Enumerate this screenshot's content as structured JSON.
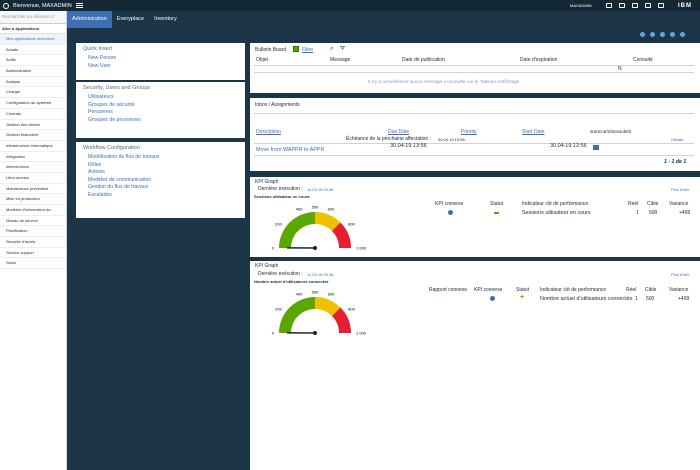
{
  "topbar": {
    "welcome": "Bienvenue, MAXADMIN",
    "user": "MAXADMIN",
    "brand": "IBM"
  },
  "nav": {
    "search_placeholder": "Rechercher un élément d",
    "section": "Aller à Applications",
    "items": [
      "Mes applications réservées",
      "Achats",
      "Actifs",
      "Administration",
      "Analyse",
      "Charger",
      "Configuration du système",
      "Contrats",
      "Gestion des tâches",
      "Gestion financière",
      "Infrastructure informatique",
      "Intégration",
      "Interventions",
      "Libre-service",
      "Maintenance préventive",
      "Mise en production",
      "Modèles d'information de...",
      "Niveau de service",
      "Planification",
      "Sécurité d'accès",
      "Service support",
      "Stock"
    ]
  },
  "tabs": [
    "Administration",
    "Everyplace",
    "Inventory"
  ],
  "quick_insert": {
    "title": "Quick Insert",
    "links": [
      "New Person",
      "New User"
    ]
  },
  "security": {
    "title": "Security, Users and Groups",
    "links": [
      "Utilisateurs",
      "Groupes de sécurité",
      "Personnes",
      "Groupes de personnes"
    ]
  },
  "workflow": {
    "title": "Workflow Configuration",
    "links": [
      "Modélisation du flux de travaux",
      "Rôles",
      "Actions",
      "Modèles de communication",
      "Gestion du flux de travaux",
      "Escalades"
    ]
  },
  "bulletin": {
    "title": "Bulletin Board",
    "filter": "Filtre",
    "cols": [
      "Objet",
      "Message",
      "Date de publication",
      "Date d'expiration",
      "Consulté"
    ],
    "consulte": "N",
    "empty": "Il n'y a actuellement aucun message à consulter sur le Tableau d'affichage"
  },
  "inbox": {
    "title": "Inbox / Assignments",
    "cols": [
      "Description",
      "Due Date",
      "Priority",
      "Start Date",
      "startcntr/inboxsubtitl"
    ],
    "subhead": "Échéance de la prochaine affectation :",
    "subdate": "30.04.19 13:56",
    "row_desc": "Move from WAPPR to APPR",
    "row_due": "30.04.19 13:56",
    "row_start": "30.04.19 12:56",
    "count": "1 - 1 de 1",
    "more": "Détails"
  },
  "kpi1": {
    "title": "KPI Graph",
    "last": "Dernière exécution :",
    "date": "11.03.15 09:36",
    "name": "Sessions utilisateur en cours",
    "cols": [
      "KPI connexe",
      "Statut",
      "Indicateur clé de performance",
      "Réel",
      "Cible",
      "Variance"
    ],
    "indicator": "Sessions utilisateur en cours",
    "actual": "1",
    "target": "500",
    "variance": "+499",
    "more": "Plus d'info",
    "ticks": [
      "0",
      "200",
      "400",
      "500",
      "600",
      "800",
      "1 000"
    ]
  },
  "kpi2": {
    "title": "KPI Graph",
    "last": "Dernière exécution :",
    "date": "11.03.15 09:36",
    "name": "Nombre actuel d'utilisateurs connectés",
    "cols": [
      "Rapport connexe",
      "KPI connexe",
      "Statut",
      "Indicateur clé de performance",
      "Réel",
      "Cible",
      "Variance"
    ],
    "indicator": "Nombre actuel d'utilisateurs connectés",
    "actual": "1",
    "target": "500",
    "variance": "+499",
    "more": "Plus d'info",
    "ticks": [
      "0",
      "200",
      "400",
      "500",
      "600",
      "800",
      "1 000"
    ]
  },
  "colors": {
    "accent": "#3d70b2",
    "navy": "#152935",
    "green": "#5aa700",
    "yellow": "#efc100",
    "red": "#e71d32"
  },
  "icons": [
    "ibm-logo-icon",
    "hamburger-icon",
    "notifications-icon",
    "chart-icon",
    "home-icon",
    "help-icon",
    "settings-icon",
    "refresh-icon",
    "edit-icon",
    "search-icon",
    "filter-icon",
    "related-kpi-icon"
  ]
}
